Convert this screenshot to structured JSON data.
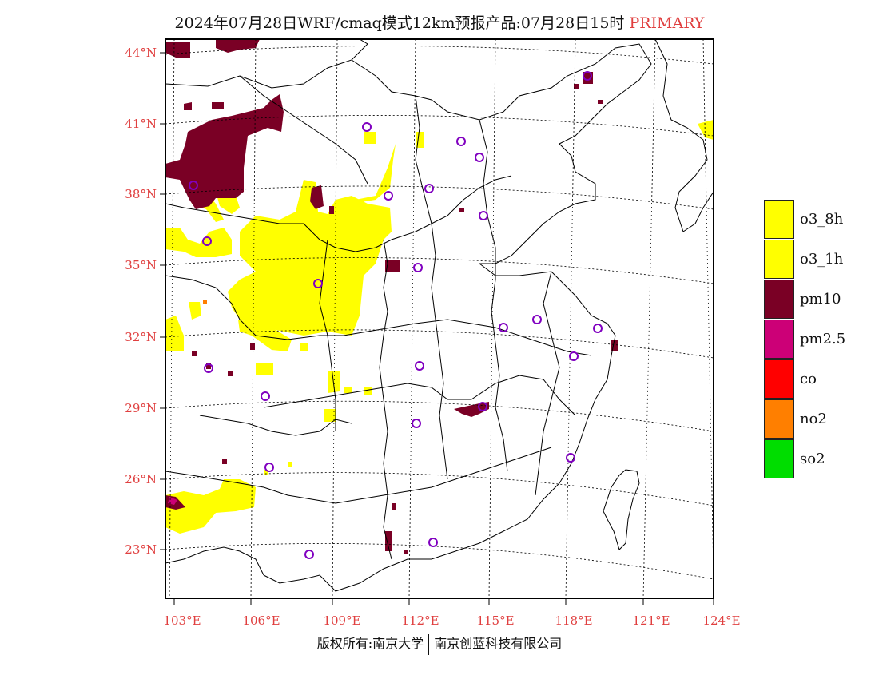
{
  "title": {
    "main": "2024年07月28日WRF/cmaq模式12km预报产品:07月28日15时",
    "tag": "PRIMARY"
  },
  "axes": {
    "lat_labels": [
      "44°N",
      "41°N",
      "38°N",
      "35°N",
      "32°N",
      "29°N",
      "26°N",
      "23°N"
    ],
    "lon_labels": [
      "103°E",
      "106°E",
      "109°E",
      "112°E",
      "115°E",
      "118°E",
      "121°E",
      "124°E"
    ]
  },
  "legend": [
    {
      "label": "o3_8h",
      "color": "#ffff00"
    },
    {
      "label": "o3_1h",
      "color": "#ffff00"
    },
    {
      "label": "pm10",
      "color": "#7a0025"
    },
    {
      "label": "pm2.5",
      "color": "#cc0077"
    },
    {
      "label": "co",
      "color": "#ff0000"
    },
    {
      "label": "no2",
      "color": "#ff7f00"
    },
    {
      "label": "so2",
      "color": "#00dd00"
    }
  ],
  "footer": {
    "left": "版权所有:南京大学",
    "right": "南京创蓝科技有限公司"
  },
  "colors": {
    "label_red": "#e04040",
    "o3": "#ffff00",
    "pm10": "#7a0025",
    "station_ring": "#8000c0"
  }
}
